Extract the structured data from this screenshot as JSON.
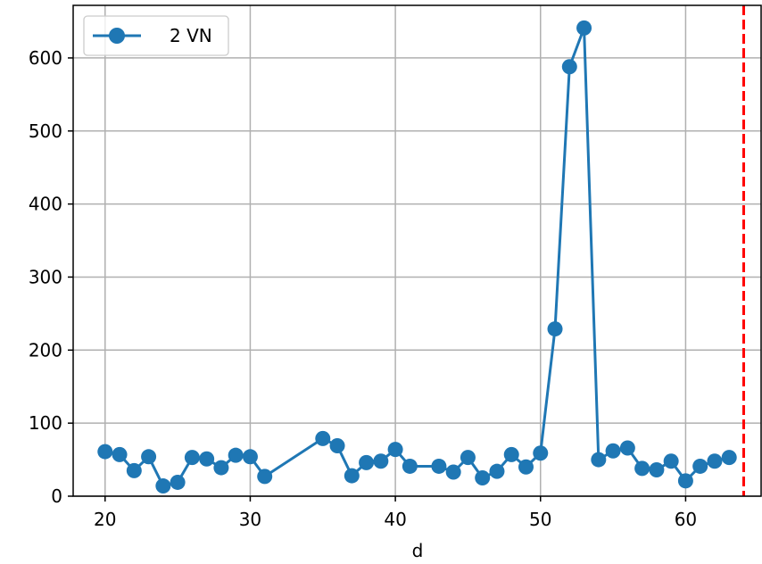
{
  "chart_data": {
    "type": "line",
    "title": "",
    "xlabel": "d",
    "ylabel": "",
    "xlim": [
      17.8,
      65.2
    ],
    "ylim": [
      0,
      672
    ],
    "xticks": [
      20,
      30,
      40,
      50,
      60
    ],
    "yticks": [
      0,
      100,
      200,
      300,
      400,
      500,
      600
    ],
    "grid": true,
    "legend": {
      "position": "top-left"
    },
    "series": [
      {
        "name": "2 VN",
        "color": "#1f77b4",
        "marker": "circle",
        "x": [
          20,
          21,
          22,
          23,
          24,
          25,
          26,
          27,
          28,
          29,
          30,
          31,
          35,
          36,
          37,
          38,
          39,
          40,
          41,
          43,
          44,
          45,
          46,
          47,
          48,
          49,
          50,
          51,
          52,
          53,
          54,
          55,
          56,
          57,
          58,
          59,
          60,
          61,
          62,
          63
        ],
        "y": [
          61,
          57,
          35,
          54,
          14,
          19,
          53,
          51,
          39,
          56,
          54,
          27,
          79,
          69,
          28,
          46,
          48,
          64,
          41,
          41,
          33,
          53,
          25,
          34,
          57,
          40,
          59,
          229,
          588,
          641,
          50,
          62,
          66,
          38,
          36,
          48,
          21,
          41,
          48,
          53
        ]
      }
    ],
    "reference_lines": [
      {
        "orientation": "vertical",
        "x": 64,
        "color": "#ff0000",
        "style": "dashed"
      }
    ]
  }
}
